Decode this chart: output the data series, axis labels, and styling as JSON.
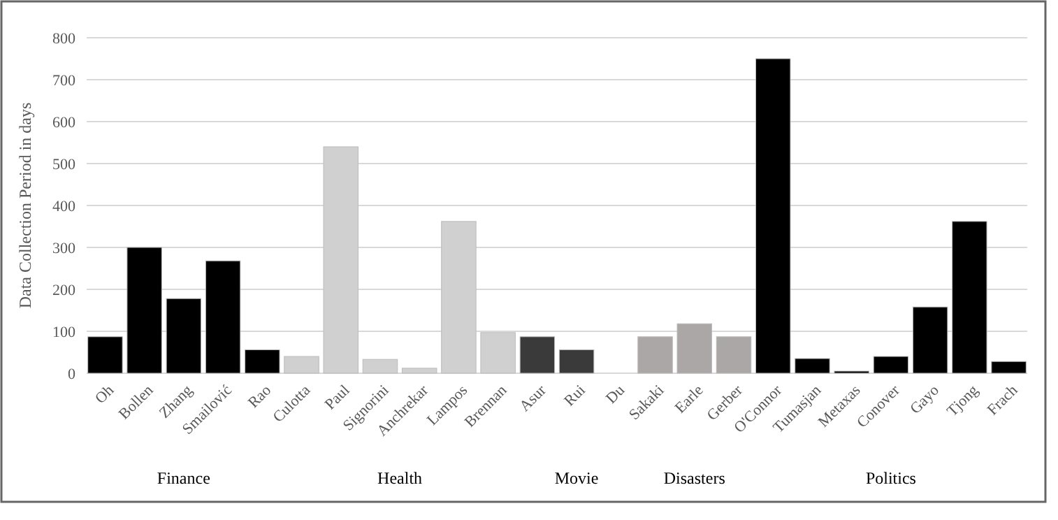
{
  "chart_data": {
    "type": "bar",
    "ylabel": "Data Collection Period in days",
    "categories": [
      "Oh",
      "Bollen",
      "Zhang",
      "Smailović",
      "Rao",
      "Culotta",
      "Paul",
      "Signorini",
      "Anchrekar",
      "Lampos",
      "Brennan",
      "Asur",
      "Rui",
      "Du",
      "Sakaki",
      "Earle",
      "Gerber",
      "O'Connor",
      "Tumasjan",
      "Metaxas",
      "Conover",
      "Gayo",
      "Tjong",
      "Frach"
    ],
    "values": [
      87,
      300,
      178,
      268,
      56,
      40,
      540,
      33,
      12,
      362,
      97,
      87,
      56,
      0,
      87,
      118,
      87,
      750,
      35,
      5,
      40,
      158,
      362,
      28
    ],
    "colors": [
      "#000000",
      "#000000",
      "#000000",
      "#000000",
      "#000000",
      "#d0d0d0",
      "#d0d0d0",
      "#d0d0d0",
      "#d0d0d0",
      "#d0d0d0",
      "#d0d0d0",
      "#3a3a3a",
      "#3a3a3a",
      "#3a3a3a",
      "#aba7a6",
      "#aba7a6",
      "#aba7a6",
      "#000000",
      "#000000",
      "#000000",
      "#000000",
      "#000000",
      "#000000",
      "#000000"
    ],
    "annotations": [
      "Finance",
      "Health",
      "Movie",
      "Disasters",
      "Politics"
    ],
    "ylim": [
      0,
      800
    ],
    "yticks": [
      0,
      100,
      200,
      300,
      400,
      500,
      600,
      700,
      800
    ],
    "grid": "y"
  }
}
